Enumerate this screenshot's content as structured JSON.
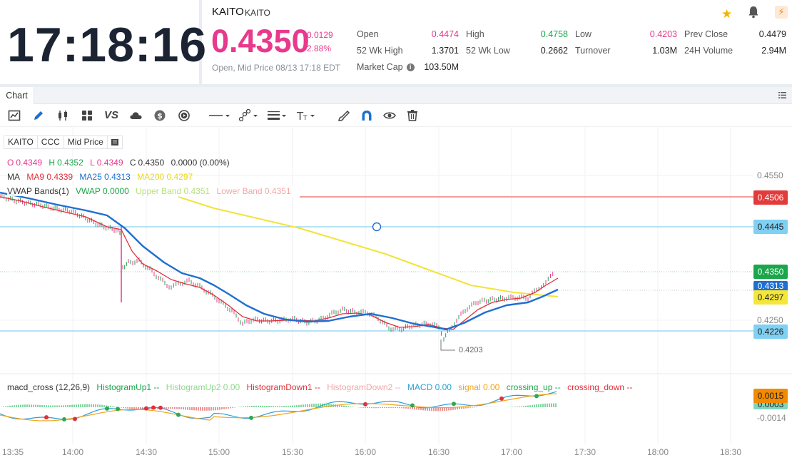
{
  "clock": "17:18:16",
  "symbol": {
    "name": "KAITO",
    "code": "KAITO"
  },
  "quote": {
    "last": "0.4350",
    "change": "-0.0129",
    "change_pct": "-2.88%",
    "status": "Open, Mid Price 08/13 17:18 EDT"
  },
  "stats": {
    "open_label": "Open",
    "open": "0.4474",
    "high_label": "High",
    "high": "0.4758",
    "low_label": "Low",
    "low": "0.4203",
    "prev_close_label": "Prev Close",
    "prev_close": "0.4479",
    "wk52_high_label": "52 Wk High",
    "wk52_high": "1.3701",
    "wk52_low_label": "52 Wk Low",
    "wk52_low": "0.2662",
    "turnover_label": "Turnover",
    "turnover": "1.03M",
    "vol24_label": "24H Volume",
    "vol24": "2.94M",
    "mcap_label": "Market Cap",
    "mcap": "103.50M"
  },
  "header_icons": [
    "star-icon",
    "bell-icon",
    "flash-icon"
  ],
  "tabs": [
    {
      "label": "Chart"
    }
  ],
  "toolbar_icons": [
    "chart-type-icon",
    "pencil-icon",
    "candle-icon",
    "grid-layout-icon",
    "compare-icon",
    "cloud-icon",
    "dollar-icon",
    "replay-icon",
    "line-style-icon",
    "node-draw-icon",
    "line-width-icon",
    "text-size-icon",
    "brush-icon",
    "magnet-icon",
    "eye-icon",
    "trash-icon"
  ],
  "toolbar_labels": {
    "vs": "VS"
  },
  "legend": {
    "symbol": "KAITO",
    "exchange": "CCC",
    "price_type": "Mid Price",
    "ohlc": {
      "o_label": "O",
      "o": "0.4349",
      "h_label": "H",
      "h": "0.4352",
      "l_label": "L",
      "l": "0.4349",
      "c_label": "C",
      "c": "0.4350",
      "chg": "0.0000 (0.00%)"
    },
    "ma": {
      "label": "MA",
      "ma9": "MA9 0.4339",
      "ma25": "MA25 0.4313",
      "ma200": "MA200 0.4297"
    },
    "vwap": {
      "label": "VWAP Bands(1)",
      "vwap": "VWAP 0.0000",
      "upper": "Upper Band 0.4351",
      "lower": "Lower Band 0.4351"
    },
    "macd": {
      "label": "macd_cross (12,26,9)",
      "hist_up1": "HistogramUp1 --",
      "hist_up2": "HistogramUp2 0.00",
      "hist_down1": "HistogramDown1 --",
      "hist_down2": "HistogramDown2 --",
      "macd": "MACD 0.00",
      "signal": "signal 0.00",
      "crossing_up": "crossing_up --",
      "crossing_down": "crossing_down --"
    }
  },
  "price_axis": [
    "0.4550",
    "0.4250"
  ],
  "price_tags": {
    "red_line": "0.4506",
    "blue_line_top": "0.4445",
    "last": "0.4350",
    "ma25_partial": "0.4313",
    "ma200": "0.4297",
    "blue_line_bottom": "0.4226"
  },
  "low_marker": "0.4203",
  "macd_axis": {
    "tag_signal": "0.0015",
    "tag_macd": "0.0003",
    "tick": "-0.0014"
  },
  "time_axis": [
    "13:35",
    "14:00",
    "14:30",
    "15:00",
    "15:30",
    "16:00",
    "16:30",
    "17:00",
    "17:30",
    "18:00",
    "18:30"
  ],
  "colors": {
    "pink": "#e8398c",
    "green": "#1aa64a",
    "ma9": "#e0303a",
    "ma25": "#1f6fd1",
    "ma200": "#f2e33a",
    "vwap_upper": "#b9e07a",
    "vwap_lower": "#f2a7a7",
    "red_line": "#e23b3b",
    "blue_line": "#6cc6ee",
    "macd": "#2a9fd6",
    "signal": "#f2a31a"
  }
}
